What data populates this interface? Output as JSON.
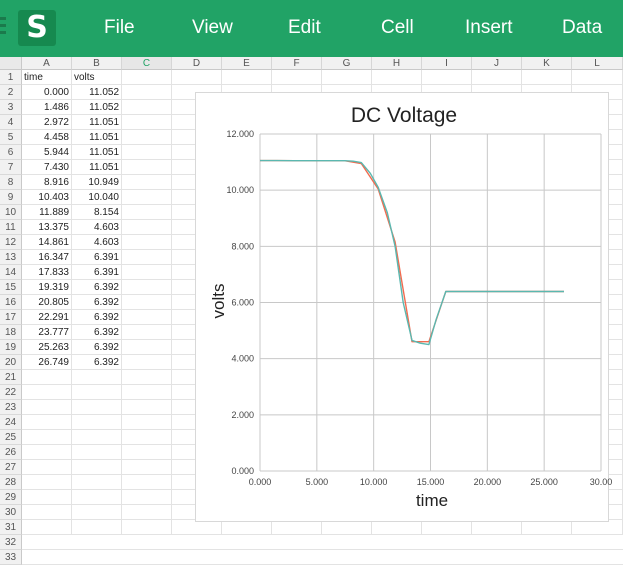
{
  "app": {
    "logo_glyph": "S",
    "menu": [
      "File",
      "View",
      "Edit",
      "Cell",
      "Insert",
      "Data"
    ]
  },
  "sheet": {
    "columns": [
      "A",
      "B",
      "C",
      "D",
      "E",
      "F",
      "G",
      "H",
      "I",
      "J",
      "K",
      "L"
    ],
    "active_column": "C",
    "row_numbers": [
      "1",
      "2",
      "3",
      "4",
      "5",
      "6",
      "7",
      "8",
      "9",
      "10",
      "11",
      "12",
      "13",
      "14",
      "15",
      "16",
      "17",
      "18",
      "19",
      "20",
      "21",
      "22",
      "23",
      "24",
      "25",
      "26",
      "27",
      "28",
      "29",
      "30",
      "31",
      "32",
      "33"
    ],
    "header": [
      "time",
      "volts"
    ],
    "rows": [
      [
        "0.000",
        "11.052"
      ],
      [
        "1.486",
        "11.052"
      ],
      [
        "2.972",
        "11.051"
      ],
      [
        "4.458",
        "11.051"
      ],
      [
        "5.944",
        "11.051"
      ],
      [
        "7.430",
        "11.051"
      ],
      [
        "8.916",
        "10.949"
      ],
      [
        "10.403",
        "10.040"
      ],
      [
        "11.889",
        "8.154"
      ],
      [
        "13.375",
        "4.603"
      ],
      [
        "14.861",
        "4.603"
      ],
      [
        "16.347",
        "6.391"
      ],
      [
        "17.833",
        "6.391"
      ],
      [
        "19.319",
        "6.392"
      ],
      [
        "20.805",
        "6.392"
      ],
      [
        "22.291",
        "6.392"
      ],
      [
        "23.777",
        "6.392"
      ],
      [
        "25.263",
        "6.392"
      ],
      [
        "26.749",
        "6.392"
      ]
    ]
  },
  "chart_data": {
    "type": "line",
    "title": "DC Voltage",
    "xlabel": "time",
    "ylabel": "volts",
    "xlim": [
      0,
      30
    ],
    "ylim": [
      0,
      12
    ],
    "x_ticks": [
      "0.000",
      "5.000",
      "10.000",
      "15.000",
      "20.000",
      "25.000",
      "30.00"
    ],
    "y_ticks": [
      "0.000",
      "2.000",
      "4.000",
      "6.000",
      "8.000",
      "10.000",
      "12.000"
    ],
    "grid": true,
    "legend": "none",
    "series": [
      {
        "color": "#f26b4f",
        "x": [
          0,
          1.486,
          2.972,
          4.458,
          5.944,
          7.43,
          8.916,
          10.403,
          11.889,
          13.375,
          14.861,
          16.347,
          17.833,
          19.319,
          20.805,
          22.291,
          23.777,
          25.263,
          26.749
        ],
        "y": [
          11.052,
          11.052,
          11.051,
          11.051,
          11.051,
          11.051,
          10.949,
          10.04,
          8.154,
          4.603,
          4.603,
          6.391,
          6.391,
          6.392,
          6.392,
          6.392,
          6.392,
          6.392,
          6.392
        ]
      },
      {
        "color": "#5ab8b0",
        "x": [
          0,
          1.486,
          2.972,
          4.458,
          5.944,
          7.43,
          8.2,
          8.916,
          9.7,
          10.403,
          11.2,
          11.889,
          12.6,
          13.375,
          14.1,
          14.861,
          15.5,
          16.347,
          17.833,
          19.319,
          20.805,
          22.291,
          23.777,
          25.263,
          26.749
        ],
        "y": [
          11.052,
          11.052,
          11.051,
          11.051,
          11.051,
          11.051,
          11.03,
          10.98,
          10.6,
          10.1,
          9.2,
          8.0,
          6.0,
          4.65,
          4.55,
          4.5,
          5.4,
          6.391,
          6.391,
          6.392,
          6.392,
          6.392,
          6.392,
          6.392,
          6.392
        ]
      }
    ]
  }
}
